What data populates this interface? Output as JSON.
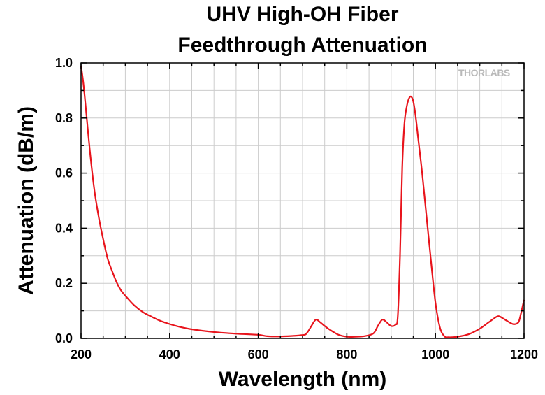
{
  "watermark": {
    "logo_text": "THORLABS"
  },
  "chart_data": {
    "type": "line",
    "title": "UHV High-OH Fiber",
    "subtitle": "Feedthrough Attenuation",
    "xlabel": "Wavelength (nm)",
    "ylabel": "Attenuation (dB/m)",
    "xlim": [
      200,
      1200
    ],
    "ylim": [
      0.0,
      1.0
    ],
    "xticks": [
      "200",
      "400",
      "600",
      "800",
      "1000",
      "1200"
    ],
    "xtick_values": [
      200,
      400,
      600,
      800,
      1000,
      1200
    ],
    "yticks": [
      "0.0",
      "0.2",
      "0.4",
      "0.6",
      "0.8",
      "1.0"
    ],
    "ytick_values": [
      0.0,
      0.2,
      0.4,
      0.6,
      0.8,
      1.0
    ],
    "grid": true,
    "line_color": "#e8141c",
    "series": [
      {
        "x": [
          200,
          205,
          210,
          220,
          230,
          240,
          250,
          260,
          270,
          280,
          290,
          300,
          320,
          340,
          360,
          380,
          400,
          420,
          450,
          500,
          550,
          600,
          620,
          650,
          700,
          710,
          720,
          730,
          740,
          750,
          760,
          780,
          800,
          820,
          840,
          860,
          870,
          880,
          890,
          900,
          910,
          915,
          920,
          925,
          930,
          935,
          940,
          945,
          950,
          955,
          960,
          970,
          980,
          990,
          1000,
          1010,
          1020,
          1030,
          1050,
          1075,
          1100,
          1120,
          1140,
          1150,
          1160,
          1175,
          1185,
          1190,
          1200
        ],
        "y": [
          0.99,
          0.93,
          0.85,
          0.68,
          0.54,
          0.44,
          0.36,
          0.29,
          0.245,
          0.205,
          0.175,
          0.155,
          0.12,
          0.095,
          0.078,
          0.063,
          0.052,
          0.043,
          0.033,
          0.023,
          0.017,
          0.013,
          0.008,
          0.007,
          0.012,
          0.02,
          0.045,
          0.068,
          0.058,
          0.045,
          0.033,
          0.014,
          0.006,
          0.006,
          0.008,
          0.018,
          0.045,
          0.068,
          0.058,
          0.045,
          0.05,
          0.08,
          0.3,
          0.62,
          0.78,
          0.84,
          0.87,
          0.878,
          0.86,
          0.81,
          0.74,
          0.6,
          0.44,
          0.28,
          0.13,
          0.04,
          0.008,
          0.004,
          0.006,
          0.015,
          0.035,
          0.058,
          0.08,
          0.075,
          0.065,
          0.052,
          0.055,
          0.07,
          0.14
        ]
      }
    ]
  }
}
